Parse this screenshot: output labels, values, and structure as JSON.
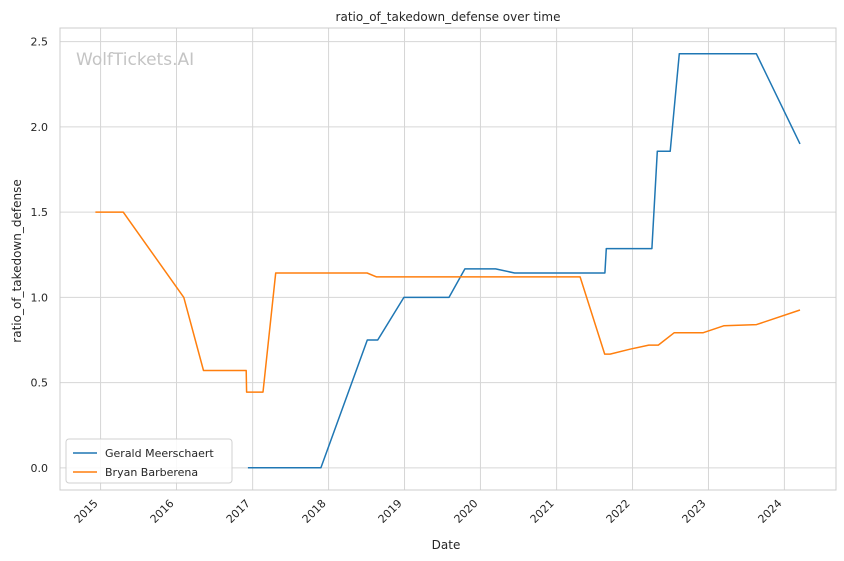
{
  "chart_data": {
    "type": "line",
    "title": "ratio_of_takedown_defense over time",
    "xlabel": "Date",
    "ylabel": "ratio_of_takedown_defense",
    "watermark": "WolfTickets.AI",
    "x_ticks": [
      "2015",
      "2016",
      "2017",
      "2018",
      "2019",
      "2020",
      "2021",
      "2022",
      "2023",
      "2024"
    ],
    "y_ticks": [
      "0.0",
      "0.5",
      "1.0",
      "1.5",
      "2.0",
      "2.5"
    ],
    "xlim": [
      "2014-06-20",
      "2024-09-05"
    ],
    "ylim": [
      -0.13,
      2.58
    ],
    "grid": true,
    "legend_position": "lower-left",
    "series": [
      {
        "name": "Gerald Meerschaert",
        "color": "#1f77b4",
        "points": [
          [
            "2016-12-09",
            0.0
          ],
          [
            "2017-11-25",
            0.0
          ],
          [
            "2018-07-06",
            0.75
          ],
          [
            "2018-08-25",
            0.75
          ],
          [
            "2018-12-29",
            1.0
          ],
          [
            "2019-08-03",
            1.0
          ],
          [
            "2019-10-18",
            1.167
          ],
          [
            "2020-03-14",
            1.167
          ],
          [
            "2020-06-13",
            1.143
          ],
          [
            "2021-08-21",
            1.143
          ],
          [
            "2021-08-28",
            1.286
          ],
          [
            "2022-04-04",
            1.286
          ],
          [
            "2022-04-30",
            1.857
          ],
          [
            "2022-07-01",
            1.857
          ],
          [
            "2022-08-14",
            2.429
          ],
          [
            "2023-08-19",
            2.429
          ],
          [
            "2024-03-16",
            1.9
          ]
        ]
      },
      {
        "name": "Bryan Barberena",
        "color": "#ff7f0e",
        "points": [
          [
            "2014-12-07",
            1.5
          ],
          [
            "2015-04-20",
            1.5
          ],
          [
            "2016-02-05",
            1.0
          ],
          [
            "2016-05-10",
            0.571
          ],
          [
            "2016-12-01",
            0.571
          ],
          [
            "2016-12-03",
            0.444
          ],
          [
            "2017-02-20",
            0.444
          ],
          [
            "2017-04-22",
            1.143
          ],
          [
            "2018-07-05",
            1.143
          ],
          [
            "2018-08-20",
            1.12
          ],
          [
            "2021-04-24",
            1.12
          ],
          [
            "2021-08-20",
            0.667
          ],
          [
            "2021-09-15",
            0.667
          ],
          [
            "2021-12-20",
            0.696
          ],
          [
            "2022-03-20",
            0.72
          ],
          [
            "2022-05-05",
            0.72
          ],
          [
            "2022-07-20",
            0.792
          ],
          [
            "2022-12-05",
            0.792
          ],
          [
            "2023-03-15",
            0.833
          ],
          [
            "2023-08-20",
            0.84
          ],
          [
            "2024-03-16",
            0.926
          ]
        ]
      }
    ]
  }
}
